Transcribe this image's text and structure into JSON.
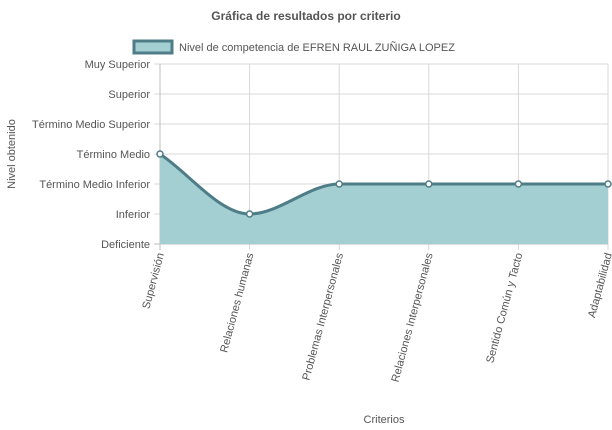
{
  "chart_data": {
    "type": "area",
    "title": "Gráfica de resultados por criterio",
    "xlabel": "Criterios",
    "ylabel": "Nivel obtenido",
    "categories": [
      "Supervisión",
      "Relaciones humanas",
      "Problemas Interpersonales",
      "Relaciones Interpersonales",
      "Sentido Común y Tacto",
      "Adaptabilidad"
    ],
    "y_levels": [
      "Deficiente",
      "Inferior",
      "Término Medio Inferior",
      "Término Medio",
      "Término Medio Superior",
      "Superior",
      "Muy Superior"
    ],
    "ylim": [
      0,
      6
    ],
    "grid": true,
    "legend_position": "top",
    "series": [
      {
        "name": "Nivel de competencia de EFREN RAUL ZUÑIGA LOPEZ",
        "values": [
          3,
          1,
          2,
          2,
          2,
          2
        ],
        "line_color": "#4e7d87",
        "fill_color": "#a3cfd2",
        "point_fill": "#ffffff"
      }
    ]
  }
}
